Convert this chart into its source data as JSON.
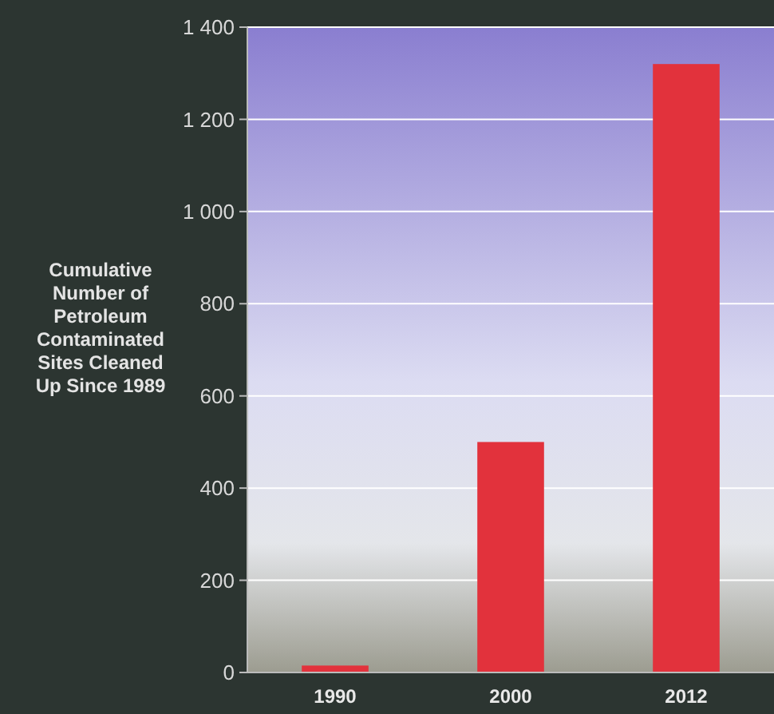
{
  "chart_data": {
    "type": "bar",
    "ylabel": "Cumulative Number of Petroleum Contaminated Sites Cleaned Up Since 1989",
    "categories": [
      "1990",
      "2000",
      "2012"
    ],
    "values": [
      15,
      500,
      1320
    ],
    "color": "#e2323c",
    "ylim": [
      0,
      1400
    ],
    "yticks": [
      0,
      200,
      400,
      600,
      800,
      {
        "value": 1000,
        "label": "1 000"
      },
      {
        "value": 1200,
        "label": "1 200"
      },
      {
        "value": 1400,
        "label": "1 400"
      }
    ],
    "grid": "y"
  }
}
